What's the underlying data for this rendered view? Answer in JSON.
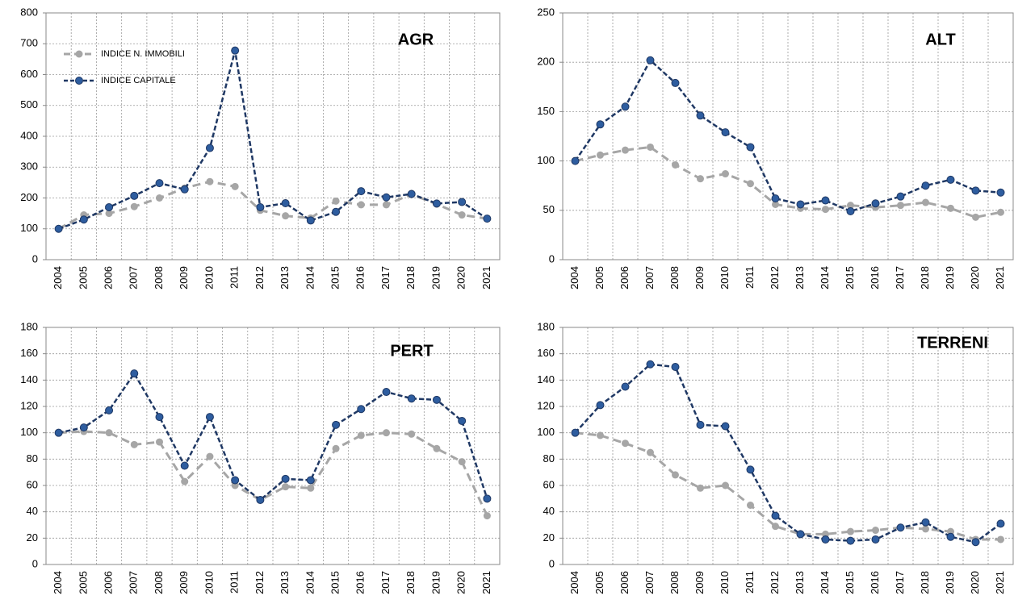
{
  "chart_data": [
    {
      "type": "line",
      "title": "AGR",
      "categories": [
        "2004",
        "2005",
        "2006",
        "2007",
        "2008",
        "2009",
        "2010",
        "2011",
        "2012",
        "2013",
        "2014",
        "2015",
        "2016",
        "2017",
        "2018",
        "2019",
        "2020",
        "2021"
      ],
      "ylim": [
        0,
        800
      ],
      "yticks": [
        0,
        100,
        200,
        300,
        400,
        500,
        600,
        700,
        800
      ],
      "grid": true,
      "series": [
        {
          "name": "INDICE N. IMMOBILI",
          "color": "#a6a6a6",
          "values": [
            100,
            145,
            150,
            172,
            200,
            232,
            253,
            237,
            160,
            142,
            135,
            190,
            178,
            178,
            212,
            180,
            145,
            133
          ]
        },
        {
          "name": "INDICE CAPITALE",
          "color": "#1f3864",
          "values": [
            100,
            130,
            170,
            207,
            248,
            228,
            362,
            678,
            170,
            183,
            127,
            155,
            222,
            202,
            213,
            182,
            187,
            133
          ]
        }
      ]
    },
    {
      "type": "line",
      "title": "ALT",
      "categories": [
        "2004",
        "2005",
        "2006",
        "2007",
        "2008",
        "2009",
        "2010",
        "2011",
        "2012",
        "2013",
        "2014",
        "2015",
        "2016",
        "2017",
        "2018",
        "2019",
        "2020",
        "2021"
      ],
      "ylim": [
        0,
        250
      ],
      "yticks": [
        0,
        50,
        100,
        150,
        200,
        250
      ],
      "grid": true,
      "series": [
        {
          "color": "#a6a6a6",
          "values": [
            100,
            106,
            111,
            114,
            96,
            82,
            87,
            77,
            56,
            52,
            51,
            55,
            53,
            55,
            58,
            52,
            43,
            48
          ]
        },
        {
          "color": "#1f3864",
          "values": [
            100,
            137,
            155,
            202,
            179,
            146,
            129,
            114,
            62,
            56,
            60,
            49,
            57,
            64,
            75,
            81,
            70,
            68
          ]
        }
      ]
    },
    {
      "type": "line",
      "title": "PERT",
      "categories": [
        "2004",
        "2005",
        "2006",
        "2007",
        "2008",
        "2009",
        "2010",
        "2011",
        "2012",
        "2013",
        "2014",
        "2015",
        "2016",
        "2017",
        "2018",
        "2019",
        "2020",
        "2021"
      ],
      "ylim": [
        0,
        180
      ],
      "yticks": [
        0,
        20,
        40,
        60,
        80,
        100,
        120,
        140,
        160,
        180
      ],
      "grid": true,
      "series": [
        {
          "color": "#a6a6a6",
          "values": [
            100,
            101,
            100,
            91,
            93,
            63,
            82,
            60,
            49,
            59,
            58,
            88,
            98,
            100,
            99,
            88,
            78,
            37
          ]
        },
        {
          "color": "#1f3864",
          "values": [
            100,
            104,
            117,
            145,
            112,
            75,
            112,
            64,
            49,
            65,
            64,
            106,
            118,
            131,
            126,
            125,
            109,
            50
          ]
        }
      ]
    },
    {
      "type": "line",
      "title": "TERRENI",
      "categories": [
        "2004",
        "2005",
        "2006",
        "2007",
        "2008",
        "2009",
        "2010",
        "2011",
        "2012",
        "2013",
        "2014",
        "2015",
        "2016",
        "2017",
        "2018",
        "2019",
        "2020",
        "2021"
      ],
      "ylim": [
        0,
        180
      ],
      "yticks": [
        0,
        20,
        40,
        60,
        80,
        100,
        120,
        140,
        160,
        180
      ],
      "grid": true,
      "series": [
        {
          "color": "#a6a6a6",
          "values": [
            100,
            98,
            92,
            85,
            68,
            58,
            60,
            45,
            29,
            23,
            23,
            25,
            26,
            28,
            27,
            25,
            19,
            19
          ]
        },
        {
          "color": "#1f3864",
          "values": [
            100,
            121,
            135,
            152,
            150,
            106,
            105,
            72,
            37,
            23,
            19,
            18,
            19,
            28,
            32,
            21,
            17,
            31
          ]
        }
      ]
    }
  ]
}
